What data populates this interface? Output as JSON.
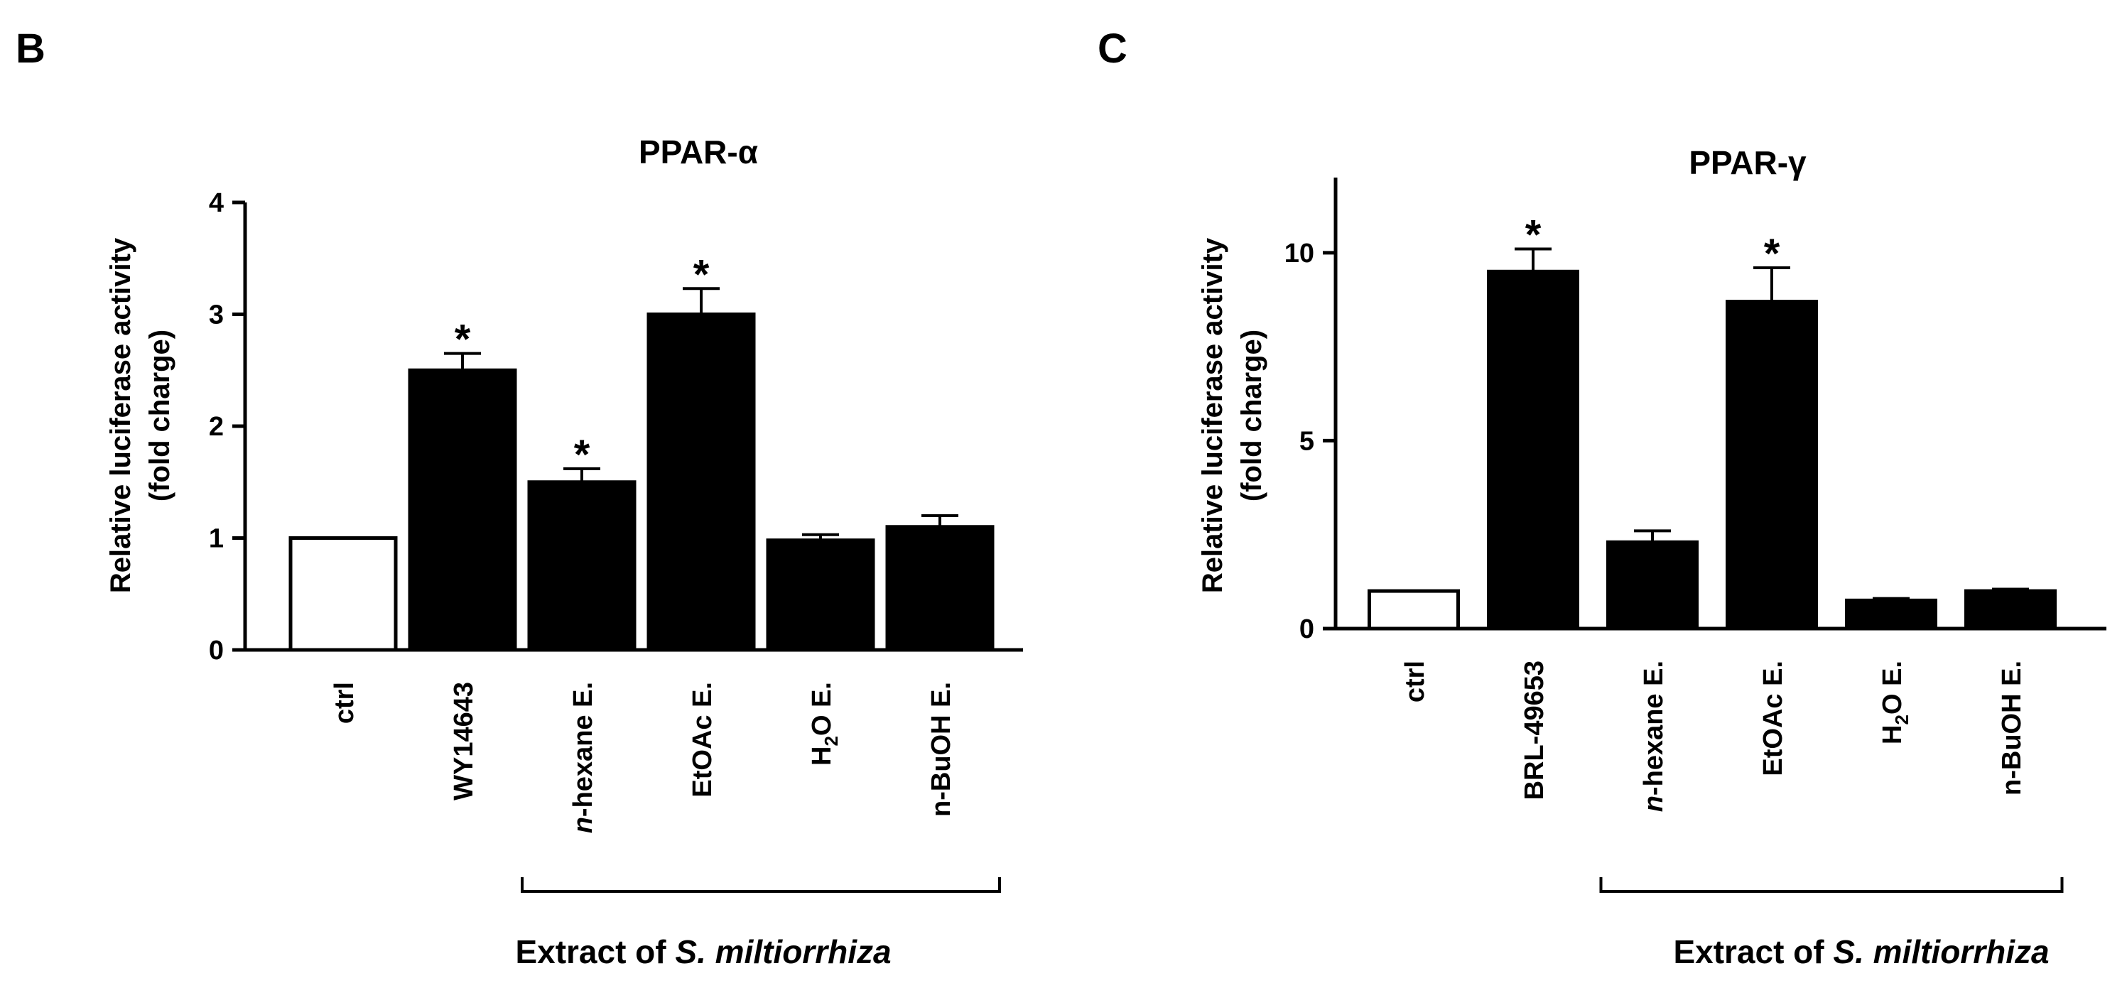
{
  "panels": [
    {
      "letter": "B",
      "bracket": {
        "prefix": "Extract of ",
        "species": "S.  miltiorrhiza"
      }
    },
    {
      "letter": "C",
      "bracket": {
        "prefix": "Extract of ",
        "species": "S.  miltiorrhiza"
      }
    }
  ],
  "chart_data": [
    {
      "type": "bar",
      "title": "PPAR-α",
      "ylabel": [
        "Relative luciferase activity",
        "(fold charge)"
      ],
      "xlabel": "",
      "ylim": [
        0,
        4
      ],
      "yticks": [
        0,
        1,
        2,
        3,
        4
      ],
      "categories": [
        "ctrl",
        "WY14643",
        "n-hexane E.",
        "EtOAc E.",
        "H2O E.",
        "n-BuOH E."
      ],
      "values": [
        1.0,
        2.5,
        1.5,
        3.0,
        0.98,
        1.1
      ],
      "errors": [
        0,
        0.15,
        0.12,
        0.23,
        0.05,
        0.1
      ],
      "significant": [
        false,
        true,
        true,
        true,
        false,
        false
      ],
      "significance_mark": "*",
      "bar_fill": [
        "#ffffff",
        "#000000",
        "#000000",
        "#000000",
        "#000000",
        "#000000"
      ],
      "grid": false,
      "bracket_over": [
        "n-hexane E.",
        "n-BuOH E."
      ]
    },
    {
      "type": "bar",
      "title": "PPAR-γ",
      "ylabel": [
        "Relative luciferase activity",
        "(fold charge)"
      ],
      "xlabel": "",
      "ylim": [
        0,
        12
      ],
      "yticks": [
        0,
        5,
        10
      ],
      "categories": [
        "ctrl",
        "BRL-49653",
        "n-hexane E.",
        "EtOAc E.",
        "H2O E.",
        "n-BuOH E."
      ],
      "values": [
        1.0,
        9.5,
        2.3,
        8.7,
        0.75,
        1.0
      ],
      "errors": [
        0,
        0.6,
        0.3,
        0.9,
        0.05,
        0.05
      ],
      "significant": [
        false,
        true,
        false,
        true,
        false,
        false
      ],
      "significance_mark": "*",
      "bar_fill": [
        "#ffffff",
        "#000000",
        "#000000",
        "#000000",
        "#000000",
        "#000000"
      ],
      "grid": false,
      "bracket_over": [
        "n-hexane E.",
        "n-BuOH E."
      ]
    }
  ]
}
